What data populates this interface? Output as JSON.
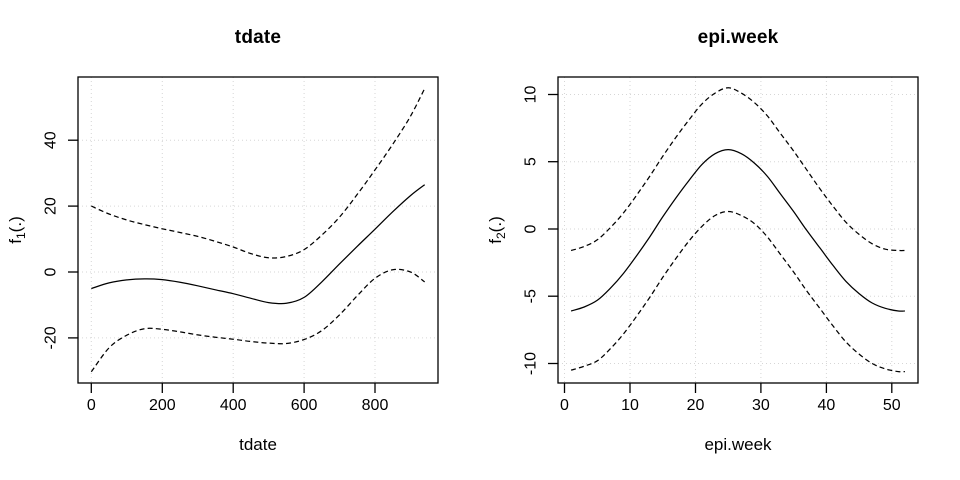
{
  "figure": {
    "background": "#ffffff",
    "line_color": "#000000",
    "grid_color": "#d6d6d6",
    "grid_style": "dotted",
    "band_style": "dashed"
  },
  "chart_data": [
    {
      "type": "line",
      "title": "tdate",
      "xlabel": "tdate",
      "ylabel": {
        "base": "f",
        "sub": "1",
        "rest": "(.)"
      },
      "xlim": [
        -37.6,
        977.6
      ],
      "ylim": [
        -33.7,
        59.2
      ],
      "xticks": [
        0,
        200,
        400,
        600,
        800
      ],
      "yticks": [
        -20,
        0,
        20,
        40
      ],
      "grid": true,
      "legend": "none",
      "x": [
        0,
        50,
        100,
        150,
        200,
        250,
        300,
        350,
        400,
        450,
        500,
        550,
        600,
        650,
        700,
        750,
        800,
        850,
        900,
        940
      ],
      "series": [
        {
          "name": "fit",
          "style": "solid",
          "values": [
            -5.0,
            -3.3,
            -2.4,
            -2.1,
            -2.3,
            -3.1,
            -4.2,
            -5.4,
            -6.6,
            -8.0,
            -9.3,
            -9.5,
            -7.7,
            -3.0,
            2.5,
            7.8,
            13.0,
            18.3,
            23.2,
            26.5
          ]
        },
        {
          "name": "upper-95ci",
          "style": "dashed",
          "values": [
            20.0,
            17.6,
            15.8,
            14.4,
            13.1,
            12.0,
            10.8,
            9.3,
            7.6,
            5.6,
            4.3,
            4.7,
            6.8,
            11.2,
            16.7,
            23.6,
            31.0,
            38.8,
            47.3,
            55.7
          ]
        },
        {
          "name": "lower-95ci",
          "style": "dashed",
          "values": [
            -30.3,
            -23.0,
            -19.2,
            -17.2,
            -17.4,
            -18.2,
            -19.1,
            -19.8,
            -20.4,
            -21.1,
            -21.6,
            -21.7,
            -20.5,
            -17.8,
            -13.0,
            -7.2,
            -1.9,
            0.7,
            0.0,
            -3.0
          ]
        }
      ]
    },
    {
      "type": "line",
      "title": "epi.week",
      "xlabel": "epi.week",
      "ylabel": {
        "base": "f",
        "sub": "2",
        "rest": "(.)"
      },
      "xlim": [
        -1.0,
        54.0
      ],
      "ylim": [
        -11.45,
        11.3
      ],
      "xticks": [
        0,
        10,
        20,
        30,
        40,
        50
      ],
      "yticks": [
        -10,
        -5,
        0,
        5,
        10
      ],
      "grid": true,
      "legend": "none",
      "x": [
        1,
        3,
        5,
        7,
        9,
        11,
        13,
        15,
        17,
        19,
        21,
        23,
        25,
        27,
        29,
        31,
        33,
        35,
        37,
        39,
        41,
        43,
        45,
        47,
        49,
        51,
        52
      ],
      "series": [
        {
          "name": "fit",
          "style": "solid",
          "values": [
            -6.1,
            -5.8,
            -5.3,
            -4.4,
            -3.3,
            -2.0,
            -0.6,
            0.9,
            2.3,
            3.6,
            4.8,
            5.6,
            5.9,
            5.6,
            4.9,
            3.9,
            2.6,
            1.3,
            -0.1,
            -1.4,
            -2.7,
            -3.9,
            -4.8,
            -5.5,
            -5.9,
            -6.1,
            -6.1
          ],
          "peak_x": 24.5
        },
        {
          "name": "upper-95ci",
          "style": "dashed",
          "values": [
            -1.6,
            -1.3,
            -0.8,
            0.1,
            1.2,
            2.5,
            3.9,
            5.4,
            6.8,
            8.1,
            9.3,
            10.1,
            10.5,
            10.1,
            9.4,
            8.4,
            7.1,
            5.8,
            4.4,
            3.0,
            1.7,
            0.5,
            -0.4,
            -1.1,
            -1.5,
            -1.6,
            -1.6
          ]
        },
        {
          "name": "lower-95ci",
          "style": "dashed",
          "values": [
            -10.5,
            -10.2,
            -9.8,
            -8.9,
            -7.8,
            -6.5,
            -5.1,
            -3.6,
            -2.2,
            -0.9,
            0.2,
            1.0,
            1.3,
            1.0,
            0.4,
            -0.6,
            -1.9,
            -3.2,
            -4.6,
            -5.9,
            -7.2,
            -8.4,
            -9.3,
            -10.0,
            -10.4,
            -10.6,
            -10.6
          ]
        }
      ]
    }
  ]
}
